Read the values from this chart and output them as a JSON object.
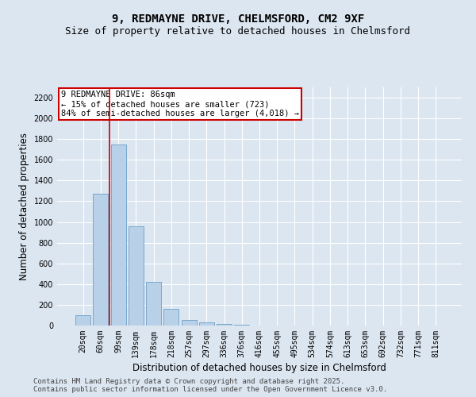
{
  "title_line1": "9, REDMAYNE DRIVE, CHELMSFORD, CM2 9XF",
  "title_line2": "Size of property relative to detached houses in Chelmsford",
  "xlabel": "Distribution of detached houses by size in Chelmsford",
  "ylabel": "Number of detached properties",
  "categories": [
    "20sqm",
    "60sqm",
    "99sqm",
    "139sqm",
    "178sqm",
    "218sqm",
    "257sqm",
    "297sqm",
    "336sqm",
    "376sqm",
    "416sqm",
    "455sqm",
    "495sqm",
    "534sqm",
    "574sqm",
    "613sqm",
    "653sqm",
    "692sqm",
    "732sqm",
    "771sqm",
    "811sqm"
  ],
  "values": [
    100,
    1270,
    1750,
    960,
    420,
    160,
    55,
    30,
    15,
    5,
    2,
    0,
    0,
    0,
    0,
    0,
    0,
    0,
    0,
    0,
    0
  ],
  "bar_color": "#b8d0e8",
  "bar_edgecolor": "#6aa0c8",
  "vline_color": "#cc0000",
  "annotation_title": "9 REDMAYNE DRIVE: 86sqm",
  "annotation_line2": "← 15% of detached houses are smaller (723)",
  "annotation_line3": "84% of semi-detached houses are larger (4,018) →",
  "annotation_box_edgecolor": "#cc0000",
  "ylim": [
    0,
    2300
  ],
  "yticks": [
    0,
    200,
    400,
    600,
    800,
    1000,
    1200,
    1400,
    1600,
    1800,
    2000,
    2200
  ],
  "bg_color": "#dce6f1",
  "grid_color": "#ffffff",
  "footer_line1": "Contains HM Land Registry data © Crown copyright and database right 2025.",
  "footer_line2": "Contains public sector information licensed under the Open Government Licence v3.0.",
  "title_fontsize": 10,
  "subtitle_fontsize": 9,
  "axis_label_fontsize": 8.5,
  "tick_fontsize": 7,
  "annotation_fontsize": 7.5,
  "footer_fontsize": 6.5
}
